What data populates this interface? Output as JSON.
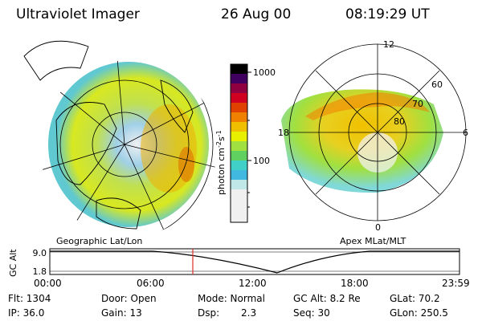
{
  "header": {
    "instrument": "Ultraviolet Imager",
    "date": "26 Aug 00",
    "time": "08:19:29 UT"
  },
  "colorbar": {
    "unit_label": "photon cm",
    "exp1": "-2",
    "mid": "s",
    "exp2": "-1",
    "tick_high": "1000",
    "tick_low": "100",
    "colors": [
      "#f0f0f0",
      "#c0e8e8",
      "#40d0c8",
      "#40b8e0",
      "#60d060",
      "#a0e040",
      "#e8f000",
      "#f0c000",
      "#f08000",
      "#e04000",
      "#d00020",
      "#900040",
      "#400060",
      "#000000"
    ]
  },
  "left_map": {
    "caption": "Geographic Lat/Lon"
  },
  "right_map": {
    "caption": "Apex MLat/MLT",
    "mlt_labels": {
      "top": "12",
      "left": "18",
      "right": "6",
      "bottom": "0"
    },
    "mlat_labels": [
      "60",
      "70",
      "80"
    ]
  },
  "timeline": {
    "axis_label": "GC Alt",
    "y_ticks": [
      "9.0",
      "1.8"
    ],
    "x_ticks": [
      "00:00",
      "06:00",
      "12:00",
      "18:00",
      "23:59"
    ],
    "current_time_fraction": 0.349,
    "marker_color": "#e03020"
  },
  "info": {
    "flt": "Flt: 1304",
    "door": "Door: Open",
    "mode": "Mode: Normal",
    "gcalt": "GC Alt: 8.2 Re",
    "glat": "GLat:  70.2",
    "ip": "IP: 36.0",
    "gain": "Gain: 13",
    "dsp_label": "Dsp:",
    "dsp_value": "2.3",
    "seq": "Seq: 30",
    "glon": "GLon: 250.5"
  }
}
